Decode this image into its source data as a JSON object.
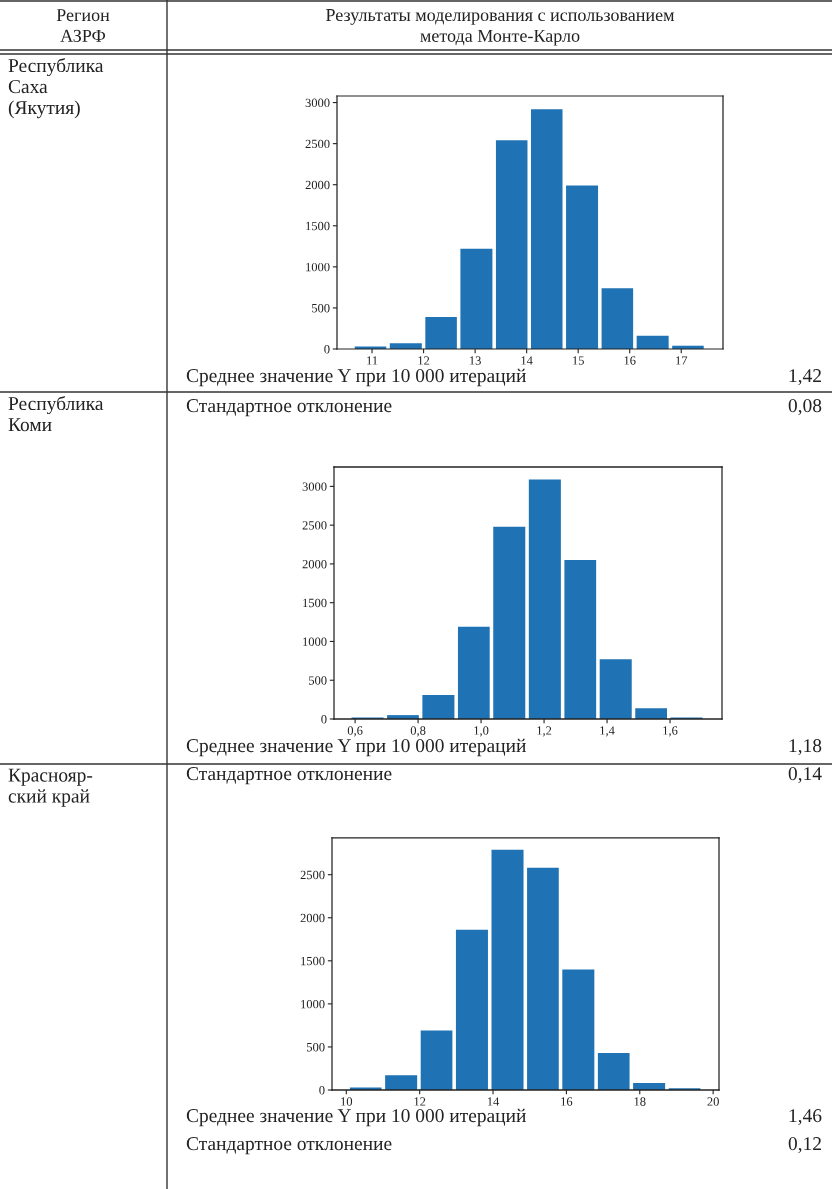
{
  "chart_data": [
    {
      "type": "histogram",
      "color": "#1f72b4",
      "bins": [
        10.63,
        11.31,
        12.0,
        12.68,
        13.37,
        14.05,
        14.73,
        15.42,
        16.1,
        16.79,
        17.47
      ],
      "values": [
        30,
        70,
        390,
        1220,
        2540,
        2920,
        1990,
        740,
        160,
        40
      ],
      "xlim": [
        10.32,
        17.81
      ],
      "ylim": [
        0,
        3080
      ],
      "xticks": [
        11,
        12,
        13,
        14,
        15,
        16,
        17
      ],
      "yticks": [
        0,
        500,
        1000,
        1500,
        2000,
        2500,
        3000
      ],
      "grid": false,
      "annotations": [
        "Регион\nАЗРФ",
        "Результаты моделирования с использованием\nметода Монте-Карло",
        "Республика\nСаха\n(Якутия)",
        "Среднее значение Y при 10 000 итераций",
        "1,42",
        "Стандартное отклонение",
        "0,08"
      ]
    },
    {
      "type": "histogram",
      "color": "#1f72b4",
      "bins": [
        0.583,
        0.696,
        0.808,
        0.921,
        1.033,
        1.146,
        1.259,
        1.371,
        1.484,
        1.596,
        1.709
      ],
      "values": [
        20,
        50,
        310,
        1190,
        2480,
        3090,
        2050,
        770,
        140,
        20
      ],
      "xlim": [
        0.533,
        1.765
      ],
      "ylim": [
        0,
        3250
      ],
      "xticks": [
        {
          "value": 0.6,
          "label": "0,6"
        },
        {
          "value": 0.8,
          "label": "0,8"
        },
        {
          "value": 1.0,
          "label": "1,0"
        },
        {
          "value": 1.2,
          "label": "1,2"
        },
        {
          "value": 1.4,
          "label": "1,4"
        },
        {
          "value": 1.6,
          "label": "1,6"
        }
      ],
      "yticks": [
        0,
        500,
        1000,
        1500,
        2000,
        2500,
        3000
      ],
      "grid": false,
      "annotations": [
        "Республика\nКоми",
        "Среднее значение Y при 10 000 итераций",
        "1,18",
        "Стандартное отклонение",
        "0,14"
      ]
    },
    {
      "type": "histogram",
      "color": "#1f72b4",
      "bins": [
        10.05,
        11.01,
        11.98,
        12.94,
        13.91,
        14.88,
        15.84,
        16.81,
        17.77,
        18.74,
        19.7
      ],
      "values": [
        30,
        170,
        690,
        1860,
        2790,
        2580,
        1400,
        430,
        80,
        20
      ],
      "xlim": [
        9.61,
        20.16
      ],
      "ylim": [
        0,
        2926
      ],
      "xticks": [
        10,
        12,
        14,
        16,
        18,
        20
      ],
      "yticks": [
        0,
        500,
        1000,
        1500,
        2000,
        2500
      ],
      "grid": false,
      "annotations": [
        "Краснояр-\nский край",
        "Среднее значение Y при 10 000 итераций",
        "1,46",
        "Стандартное отклонение",
        "0,12"
      ]
    }
  ]
}
